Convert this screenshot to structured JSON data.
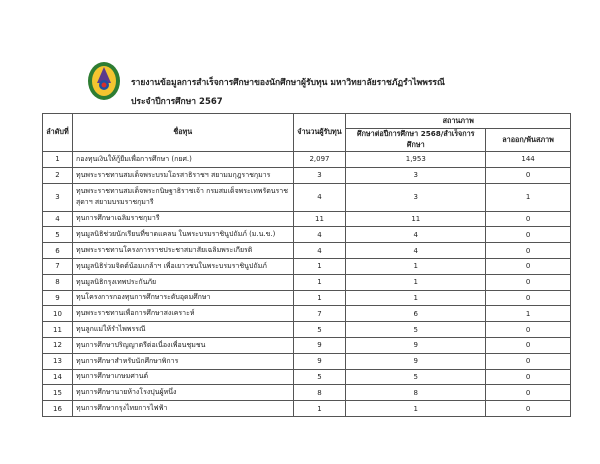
{
  "header": {
    "title": "รายงานข้อมูลการสำเร็จการศึกษาของนักศึกษาผู้รับทุน มหาวิทยาลัยราชภัฏรำไพพรรณี",
    "subtitle": "ประจำปีการศึกษา 2567"
  },
  "table": {
    "columns": {
      "no": "ลำดับที่",
      "name": "ชื่อทุน",
      "count": "จำนวนผู้รับทุน",
      "status": "สถานภาพ",
      "continuing": "ศึกษาต่อปีการศึกษา 2568/สำเร็จการศึกษา",
      "dropped": "ลาออก/พ้นสภาพ"
    },
    "rows": [
      {
        "no": "1",
        "name": "กองทุนเงินให้กู้ยืมเพื่อการศึกษา (กยศ.)",
        "count": "2,097",
        "continuing": "1,953",
        "dropped": "144"
      },
      {
        "no": "2",
        "name": "ทุนพระราชทานสมเด็จพระบรมโอรสาธิราชฯ สยามมกุฎราชกุมาร",
        "count": "3",
        "continuing": "3",
        "dropped": "0"
      },
      {
        "no": "3",
        "name": "ทุนพระราชทานสมเด็จพระกนิษฐาธิราชเจ้า กรมสมเด็จพระเทพรัตนราชสุดาฯ สยามบรมราชกุมารี",
        "count": "4",
        "continuing": "3",
        "dropped": "1"
      },
      {
        "no": "4",
        "name": "ทุนการศึกษาเฉลิมราชกุมารี",
        "count": "11",
        "continuing": "11",
        "dropped": "0"
      },
      {
        "no": "5",
        "name": "ทุนมูลนิธิช่วยนักเรียนที่ขาดแคลน ในพระบรมราชินูปถัมภ์  (ม.น.ข.)",
        "count": "4",
        "continuing": "4",
        "dropped": "0"
      },
      {
        "no": "6",
        "name": "ทุนพระราชทานโครงการราชประชาสมาสัยเฉลิมพระเกียรติ",
        "count": "4",
        "continuing": "4",
        "dropped": "0"
      },
      {
        "no": "7",
        "name": "ทุนมูลนิธิร่วมจิตต์น้อมเกล้าฯ เพื่อเยาวชนในพระบรมราชินูปถัมภ์",
        "count": "1",
        "continuing": "1",
        "dropped": "0"
      },
      {
        "no": "8",
        "name": "ทุนมูลนิธิกรุงเทพประกันภัย",
        "count": "1",
        "continuing": "1",
        "dropped": "0"
      },
      {
        "no": "9",
        "name": "ทุนโครงการกองทุนการศึกษาระดับอุดมศึกษา",
        "count": "1",
        "continuing": "1",
        "dropped": "0"
      },
      {
        "no": "10",
        "name": "ทุนพระราชทานเพื่อการศึกษาสงเคราะห์",
        "count": "7",
        "continuing": "6",
        "dropped": "1"
      },
      {
        "no": "11",
        "name": "ทุนลูกแม่ให้รำไพพรรณี",
        "count": "5",
        "continuing": "5",
        "dropped": "0"
      },
      {
        "no": "12",
        "name": "ทุนการศึกษาปริญญาตรีต่อเนื่องเพื่อนชุมชน",
        "count": "9",
        "continuing": "9",
        "dropped": "0"
      },
      {
        "no": "13",
        "name": "ทุนการศึกษาสำหรับนักศึกษาพิการ",
        "count": "9",
        "continuing": "9",
        "dropped": "0"
      },
      {
        "no": "14",
        "name": "ทุนการศึกษาเกษมศานต์",
        "count": "5",
        "continuing": "5",
        "dropped": "0"
      },
      {
        "no": "15",
        "name": "ทุนการศึกษานายห้างโรงปุนผู้หนึ่ง",
        "count": "8",
        "continuing": "8",
        "dropped": "0"
      },
      {
        "no": "16",
        "name": "ทุนการศึกษากรุงไทยการไฟฟ้า",
        "count": "1",
        "continuing": "1",
        "dropped": "0"
      }
    ]
  }
}
